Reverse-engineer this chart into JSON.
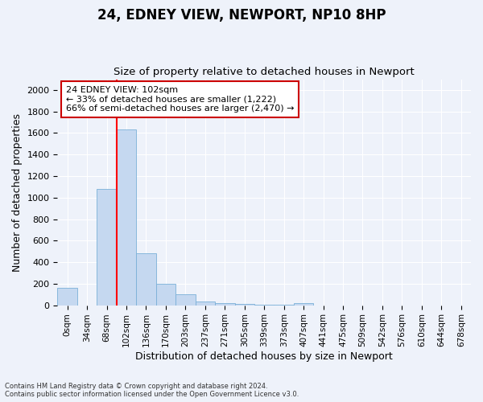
{
  "title1": "24, EDNEY VIEW, NEWPORT, NP10 8HP",
  "title2": "Size of property relative to detached houses in Newport",
  "xlabel": "Distribution of detached houses by size in Newport",
  "ylabel": "Number of detached properties",
  "categories": [
    "0sqm",
    "34sqm",
    "68sqm",
    "102sqm",
    "136sqm",
    "170sqm",
    "203sqm",
    "237sqm",
    "271sqm",
    "305sqm",
    "339sqm",
    "373sqm",
    "407sqm",
    "441sqm",
    "475sqm",
    "509sqm",
    "542sqm",
    "576sqm",
    "610sqm",
    "644sqm",
    "678sqm"
  ],
  "bar_values": [
    165,
    0,
    1080,
    1630,
    480,
    200,
    100,
    35,
    22,
    10,
    5,
    5,
    20,
    0,
    0,
    0,
    0,
    0,
    0,
    0,
    0
  ],
  "bar_color": "#c5d8f0",
  "bar_edge_color": "#7ab0d8",
  "red_line_index": 3,
  "annotation_text": "24 EDNEY VIEW: 102sqm\n← 33% of detached houses are smaller (1,222)\n66% of semi-detached houses are larger (2,470) →",
  "annotation_box_color": "#ffffff",
  "annotation_box_edge_color": "#cc0000",
  "ylim": [
    0,
    2100
  ],
  "yticks": [
    0,
    200,
    400,
    600,
    800,
    1000,
    1200,
    1400,
    1600,
    1800,
    2000
  ],
  "footer1": "Contains HM Land Registry data © Crown copyright and database right 2024.",
  "footer2": "Contains public sector information licensed under the Open Government Licence v3.0.",
  "background_color": "#eef2fa",
  "grid_color": "#ffffff",
  "title_fontsize": 12,
  "subtitle_fontsize": 9.5
}
